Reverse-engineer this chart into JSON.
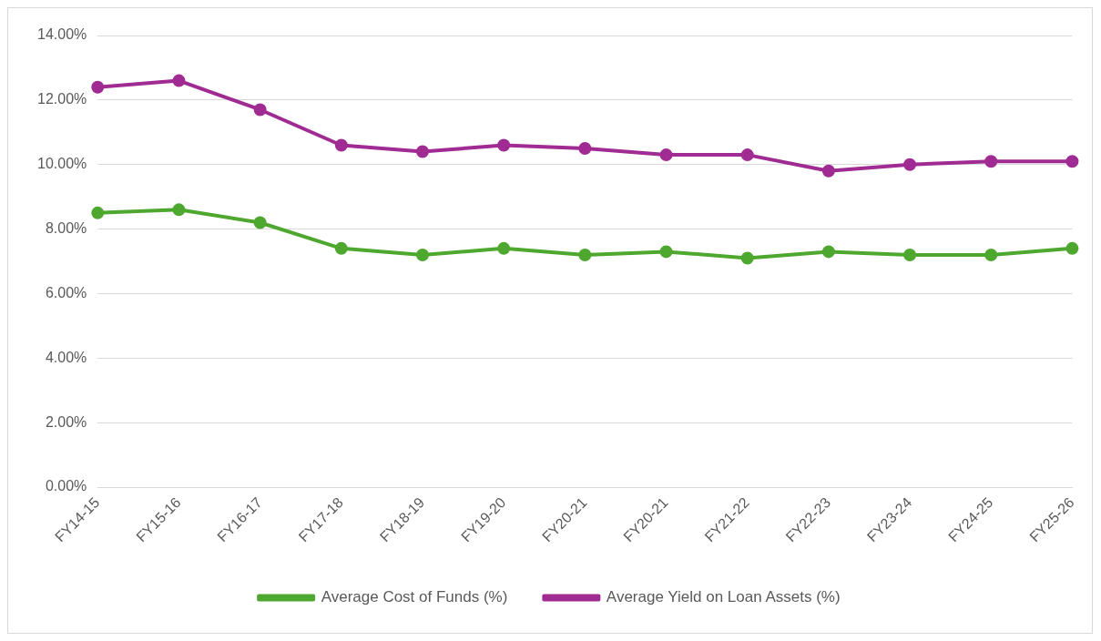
{
  "chart_data": {
    "type": "line",
    "categories": [
      "FY14-15",
      "FY15-16",
      "FY16-17",
      "FY17-18",
      "FY18-19",
      "FY19-20",
      "FY20-21",
      "FY20-21",
      "FY21-22",
      "FY22-23",
      "FY23-24",
      "FY24-25",
      "FY25-26"
    ],
    "series": [
      {
        "name": "Average Cost of Funds (%)",
        "color": "#4ea72e",
        "values": [
          8.5,
          8.6,
          8.2,
          7.4,
          7.2,
          7.4,
          7.2,
          7.3,
          7.1,
          7.3,
          7.2,
          7.2,
          7.4
        ]
      },
      {
        "name": "Average Yield on Loan Assets (%)",
        "color": "#a02b93",
        "values": [
          12.4,
          12.6,
          11.7,
          10.6,
          10.4,
          10.6,
          10.5,
          10.3,
          10.3,
          9.8,
          10.0,
          10.1,
          10.1
        ]
      }
    ],
    "ylim": [
      0,
      14
    ],
    "yticks": [
      {
        "value": 0,
        "label": "0.00%"
      },
      {
        "value": 2,
        "label": "2.00%"
      },
      {
        "value": 4,
        "label": "4.00%"
      },
      {
        "value": 6,
        "label": "6.00%"
      },
      {
        "value": 8,
        "label": "8.00%"
      },
      {
        "value": 10,
        "label": "10.00%"
      },
      {
        "value": 12,
        "label": "12.00%"
      },
      {
        "value": 14,
        "label": "14.00%"
      }
    ],
    "grid": "y",
    "legend": "bottom",
    "marker": "circle",
    "line_style": "solid"
  }
}
